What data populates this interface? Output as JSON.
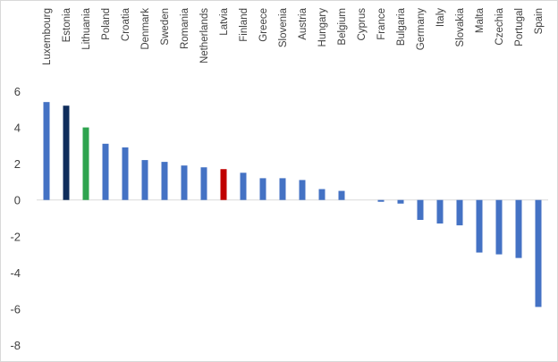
{
  "chart_data": {
    "type": "bar",
    "title": "",
    "xlabel": "",
    "ylabel": "",
    "ylim": [
      -8,
      6
    ],
    "yticks": [
      6,
      4,
      2,
      0,
      -2,
      -4,
      -6,
      -8
    ],
    "grid": false,
    "legend": "none",
    "categories": [
      "Luxembourg",
      "Estonia",
      "Lithuania",
      "Poland",
      "Croatia",
      "Denmark",
      "Sweden",
      "Romania",
      "Netherlands",
      "Latvia",
      "Finland",
      "Greece",
      "Slovenia",
      "Austria",
      "Hungary",
      "Belgium",
      "Cyprus",
      "France",
      "Bulgaria",
      "Germany",
      "Italy",
      "Slovakia",
      "Malta",
      "Czechia",
      "Portugal",
      "Spain"
    ],
    "values": [
      5.4,
      5.2,
      4.0,
      3.1,
      2.9,
      2.2,
      2.1,
      1.9,
      1.8,
      1.7,
      1.5,
      1.2,
      1.2,
      1.1,
      0.6,
      0.5,
      0.0,
      -0.1,
      -0.2,
      -1.1,
      -1.3,
      -1.4,
      -2.9,
      -3.0,
      -3.2,
      -5.9
    ],
    "bar_colors": [
      "#4472c4",
      "#0f2d5c",
      "#2ea44f",
      "#4472c4",
      "#4472c4",
      "#4472c4",
      "#4472c4",
      "#4472c4",
      "#4472c4",
      "#c00000",
      "#4472c4",
      "#4472c4",
      "#4472c4",
      "#4472c4",
      "#4472c4",
      "#4472c4",
      "#4472c4",
      "#4472c4",
      "#4472c4",
      "#4472c4",
      "#4472c4",
      "#4472c4",
      "#4472c4",
      "#4472c4",
      "#4472c4",
      "#4472c4"
    ],
    "axis_color": "#d9d9d9"
  }
}
